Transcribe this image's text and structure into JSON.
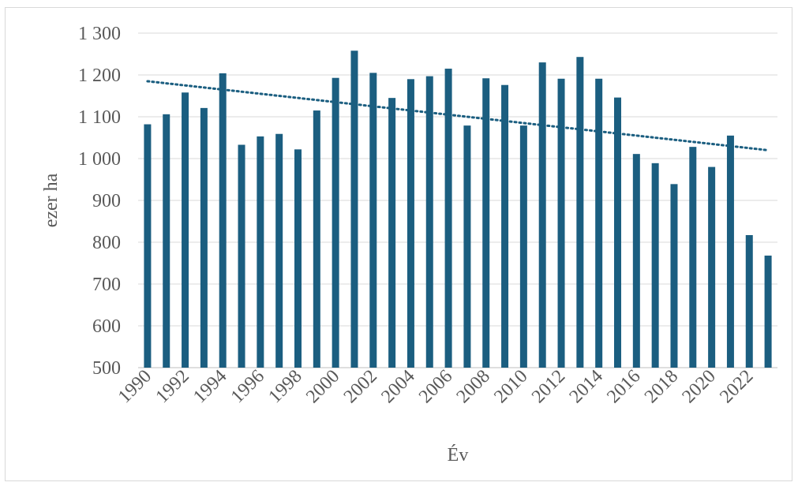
{
  "chart_data": {
    "type": "bar",
    "xlabel": "Év",
    "ylabel": "ezer ha",
    "ylim": [
      500,
      1300
    ],
    "y_ticks": [
      500,
      600,
      700,
      800,
      900,
      1000,
      1100,
      1200,
      1300
    ],
    "y_tick_labels": [
      "500",
      "600",
      "700",
      "800",
      "900",
      "1 000",
      "1 100",
      "1 200",
      "1 300"
    ],
    "x_tick_labels": [
      "1990",
      "1992",
      "1994",
      "1996",
      "1998",
      "2000",
      "2002",
      "2004",
      "2006",
      "2008",
      "2010",
      "2012",
      "2014",
      "2016",
      "2018",
      "2020",
      "2022"
    ],
    "categories": [
      1990,
      1991,
      1992,
      1993,
      1994,
      1995,
      1996,
      1997,
      1998,
      1999,
      2000,
      2001,
      2002,
      2003,
      2004,
      2005,
      2006,
      2007,
      2008,
      2009,
      2010,
      2011,
      2012,
      2013,
      2014,
      2015,
      2016,
      2017,
      2018,
      2019,
      2020,
      2021,
      2022,
      2023
    ],
    "values": [
      1082,
      1106,
      1158,
      1121,
      1204,
      1033,
      1053,
      1059,
      1022,
      1115,
      1193,
      1258,
      1205,
      1145,
      1190,
      1197,
      1215,
      1079,
      1192,
      1176,
      1079,
      1230,
      1191,
      1243,
      1191,
      1146,
      1011,
      989,
      939,
      1028,
      980,
      1055,
      817,
      768
    ],
    "trendline": {
      "type": "linear",
      "start": 1185,
      "end": 1020
    },
    "grid": true,
    "legend": "none",
    "colors": {
      "bar": "#1b5e80",
      "trend": "#1b5e80",
      "grid": "#d9d9d9",
      "text": "#595959"
    }
  }
}
